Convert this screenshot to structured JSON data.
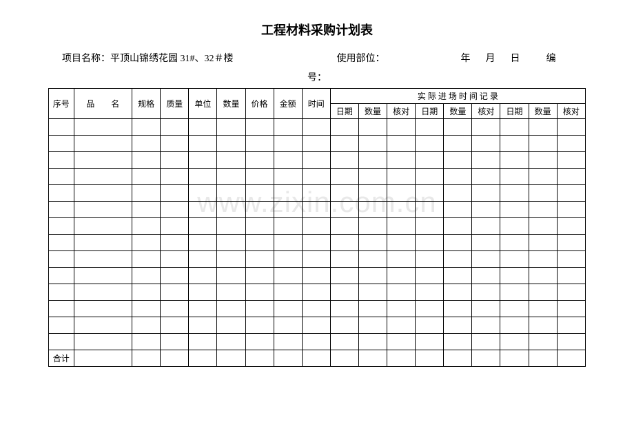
{
  "title": "工程材料采购计划表",
  "info": {
    "project_label": "项目名称：",
    "project_value": "平顶山锦绣花园 31#、32＃楼",
    "use_dept_label": "使用部位：",
    "year_label": "年",
    "month_label": "月",
    "day_label": "日",
    "serial_prefix": "编",
    "serial_label": "号："
  },
  "headers": {
    "seq": "序号",
    "name": "品　　名",
    "spec": "规格",
    "qual": "质量",
    "unit": "单位",
    "qty": "数量",
    "price": "价格",
    "amount": "金额",
    "time": "时间",
    "actual_group": "实 际 进 场 时 间 记 录",
    "date": "日期",
    "aqty": "数量",
    "check": "核对"
  },
  "footer": {
    "total": "合计"
  },
  "watermark": "www.zixin.com.cn",
  "style": {
    "border_color": "#000000",
    "background_color": "#ffffff",
    "watermark_color": "#e8e8e8",
    "title_fontsize": 18,
    "body_fontsize": 14,
    "cell_fontsize": 12,
    "data_row_count": 14,
    "col_count": 18
  }
}
